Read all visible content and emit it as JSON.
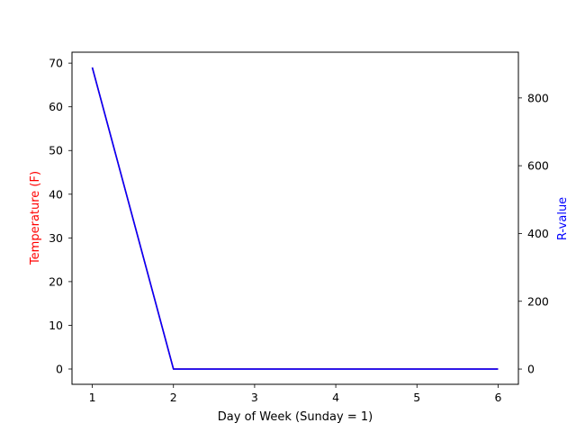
{
  "chart_data": {
    "type": "line",
    "title": "",
    "xlabel": "Day of Week (Sunday = 1)",
    "ylabel_left": "Temperature (F)",
    "ylabel_right": "R-value",
    "xlim": [
      0.75,
      6.25
    ],
    "ylim_left": [
      -3.5,
      72.5
    ],
    "ylim_right": [
      -45,
      935
    ],
    "x_ticks": [
      1,
      2,
      3,
      4,
      5,
      6
    ],
    "y_ticks_left": [
      0,
      10,
      20,
      30,
      40,
      50,
      60,
      70
    ],
    "y_ticks_right": [
      0,
      200,
      400,
      600,
      800
    ],
    "grid": false,
    "colors": {
      "left_label": "#ff0000",
      "right_label": "#0000ff",
      "temperature_line": "#ff0000",
      "r_value_line": "#0000ff"
    },
    "series": [
      {
        "axis": "left",
        "color": "#ff0000",
        "x": [
          1,
          2,
          3,
          4,
          5,
          6
        ],
        "values": [
          69,
          0,
          0,
          0,
          0,
          0
        ]
      },
      {
        "axis": "right",
        "color": "#0000ff",
        "x": [
          1,
          2,
          3,
          4,
          5,
          6
        ],
        "values": [
          890,
          0,
          0,
          0,
          0,
          0
        ]
      }
    ]
  }
}
